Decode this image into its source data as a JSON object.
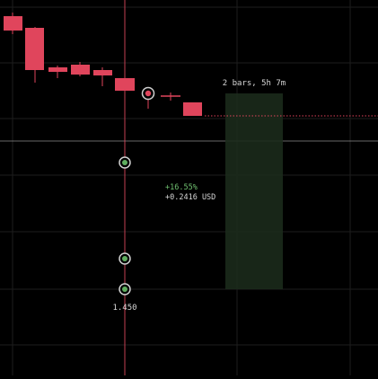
{
  "colors": {
    "background": "#000000",
    "grid": "#1e1e1e",
    "bearish": "#e0455c",
    "crosshair": "#c8c8c8",
    "measure_line": "#e0455c",
    "range_fill": "#1b2a1b",
    "handle_green": "#5fae5f",
    "handle_red": "#e0455c",
    "gain_text": "#6fbf6f",
    "label_text": "#d6d6d6"
  },
  "range_label": "2 bars, 5h 7m",
  "measure": {
    "percent": "+16.55%",
    "amount": "+0.2416 USD"
  },
  "price_label": "1.450",
  "icons": {
    "handles": [
      "green-handle-icon",
      "red-handle-icon"
    ]
  }
}
